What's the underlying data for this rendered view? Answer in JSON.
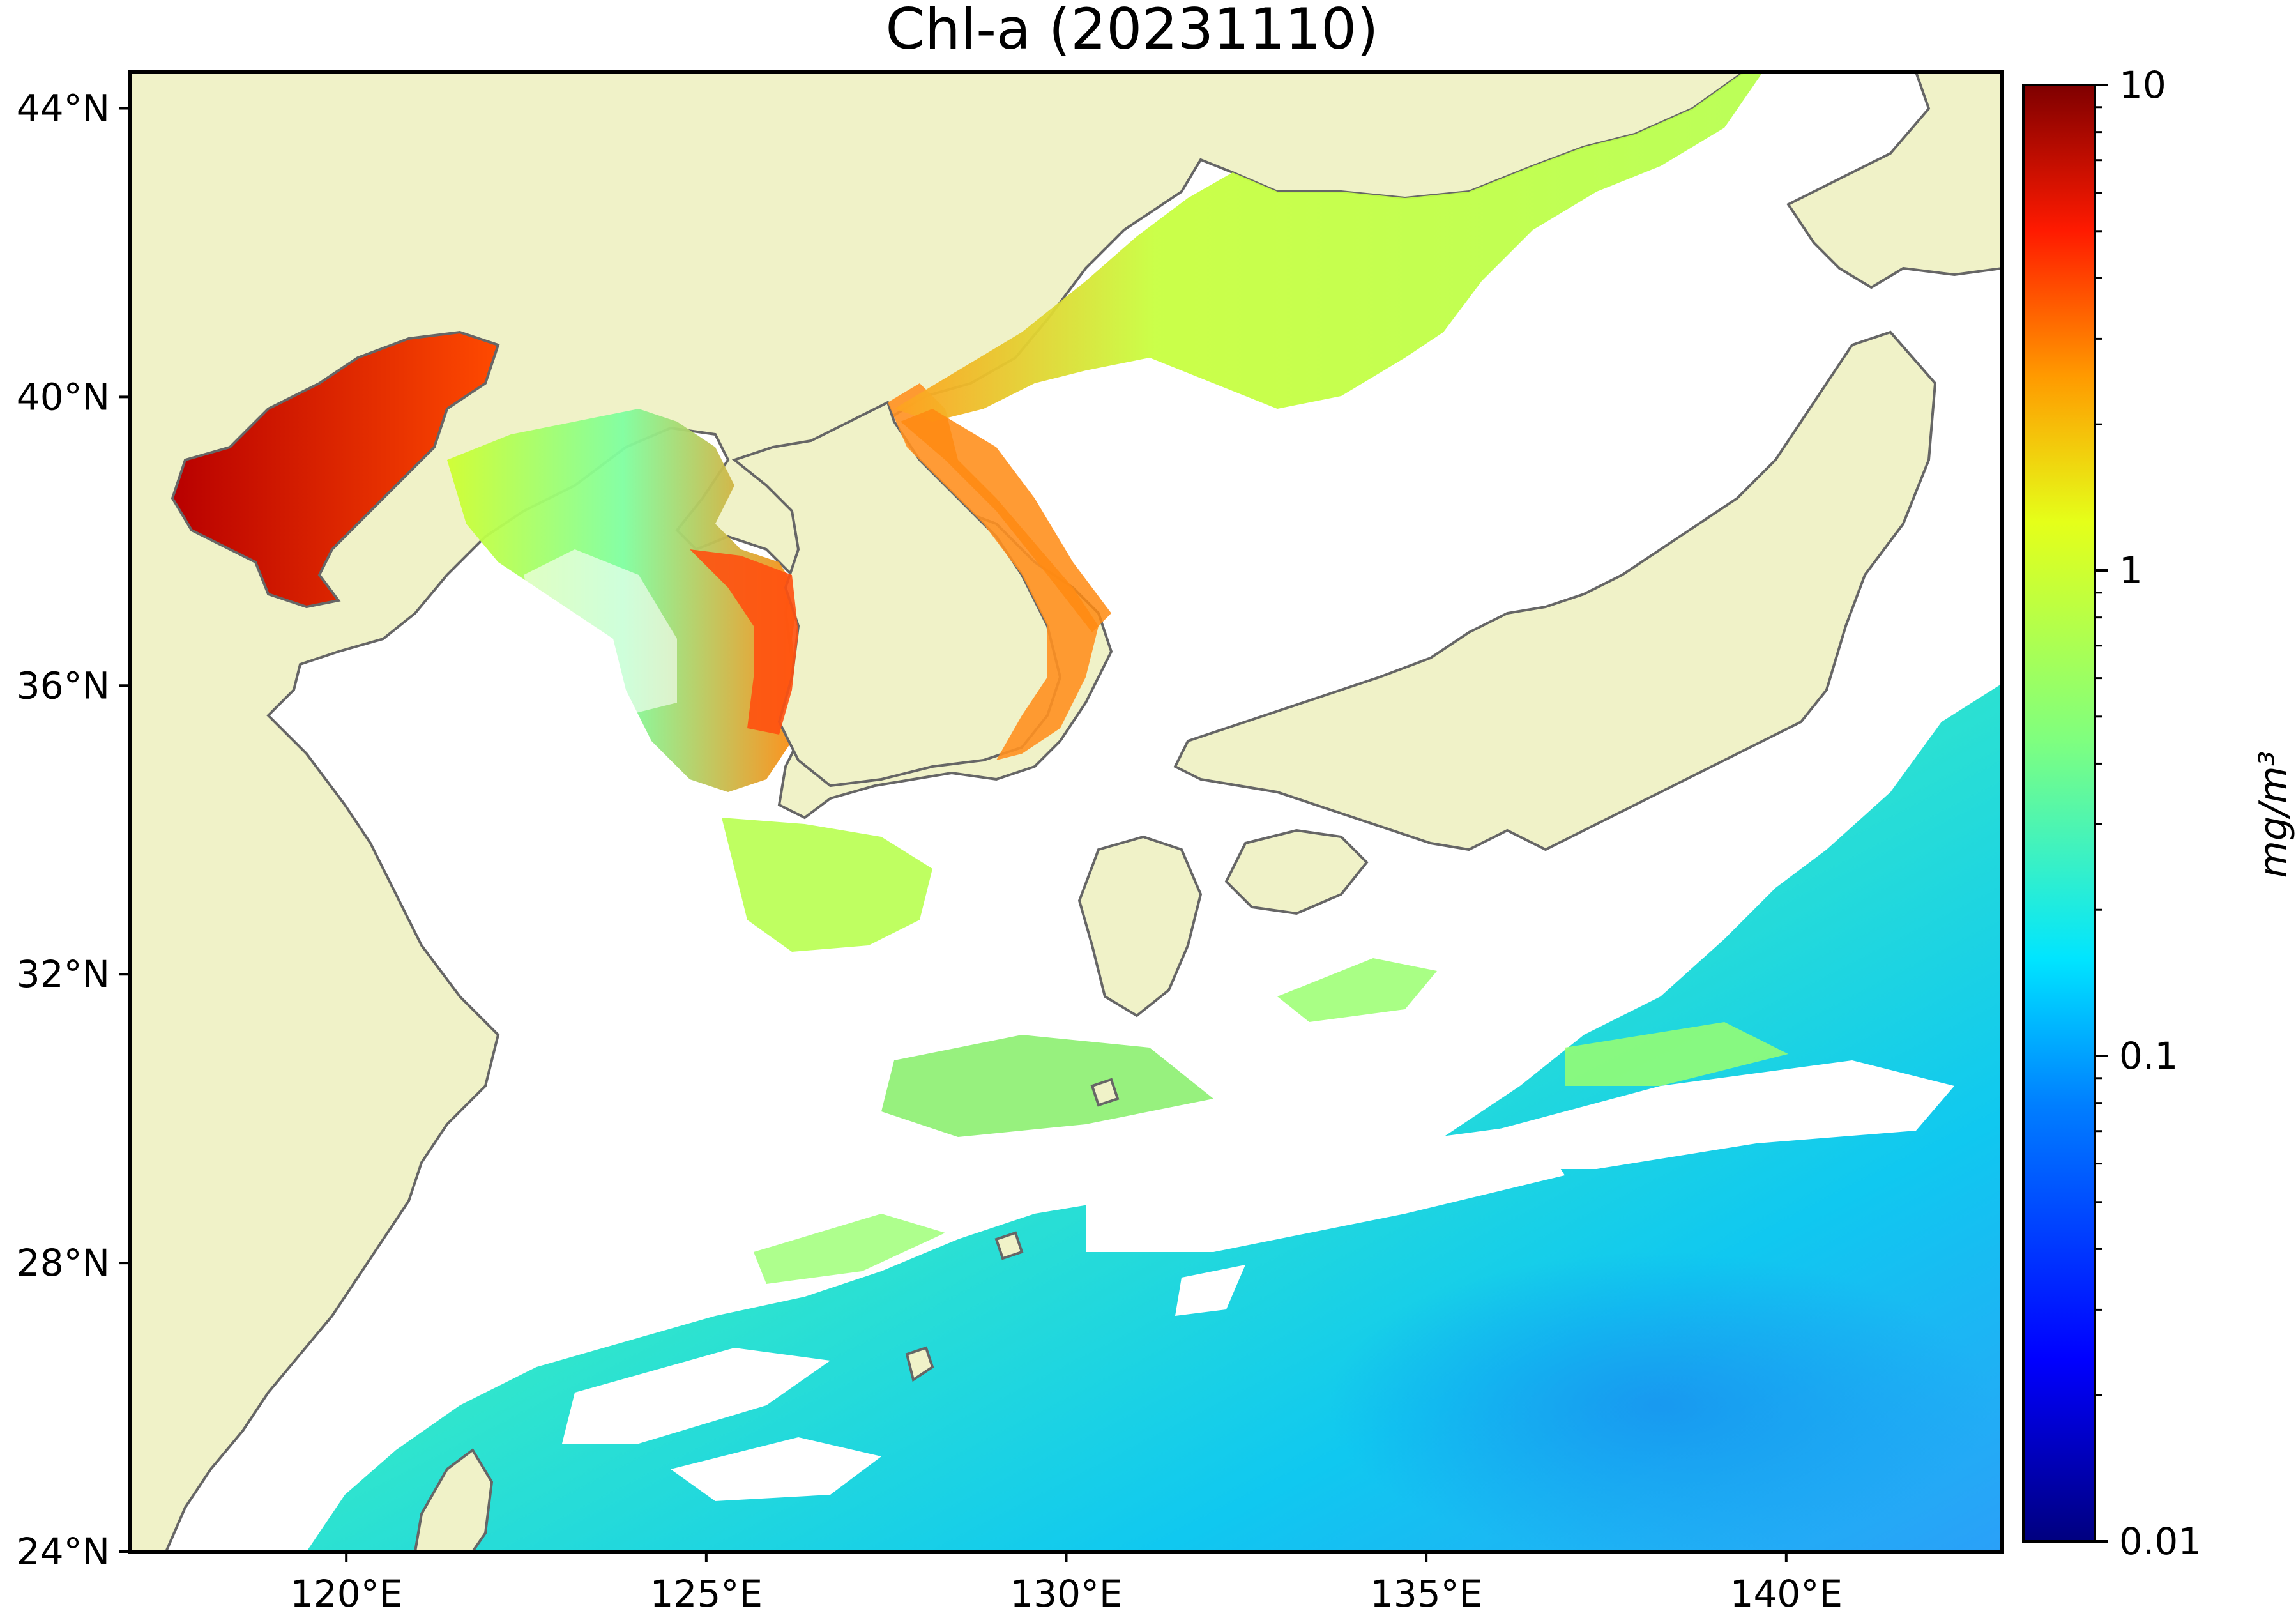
{
  "title": "Chl-a (20231110)",
  "map": {
    "lon_range": [
      117,
      143
    ],
    "lat_range": [
      24,
      44.5
    ],
    "x_ticks": [
      {
        "value": 120,
        "label": "120°E"
      },
      {
        "value": 125,
        "label": "125°E"
      },
      {
        "value": 130,
        "label": "130°E"
      },
      {
        "value": 135,
        "label": "135°E"
      },
      {
        "value": 140,
        "label": "140°E"
      }
    ],
    "y_ticks": [
      {
        "value": 24,
        "label": "24°N"
      },
      {
        "value": 28,
        "label": "28°N"
      },
      {
        "value": 32,
        "label": "32°N"
      },
      {
        "value": 36,
        "label": "36°N"
      },
      {
        "value": 40,
        "label": "40°N"
      },
      {
        "value": 44,
        "label": "44°N"
      }
    ],
    "colors": {
      "land": "#f0f2c8",
      "coast": "#666666",
      "no_data": "#ffffff"
    }
  },
  "colorbar": {
    "scale": "log",
    "min": 0.01,
    "max": 10,
    "tick_labels": [
      "10",
      "1",
      "0.1",
      "0.01"
    ],
    "unit": "mg/m³",
    "colormap": "jet",
    "colors": [
      "#00007f",
      "#0000ff",
      "#007fff",
      "#00e5ff",
      "#7fff7f",
      "#e5ff19",
      "#ff7f00",
      "#ff1a00",
      "#7f0000"
    ]
  }
}
